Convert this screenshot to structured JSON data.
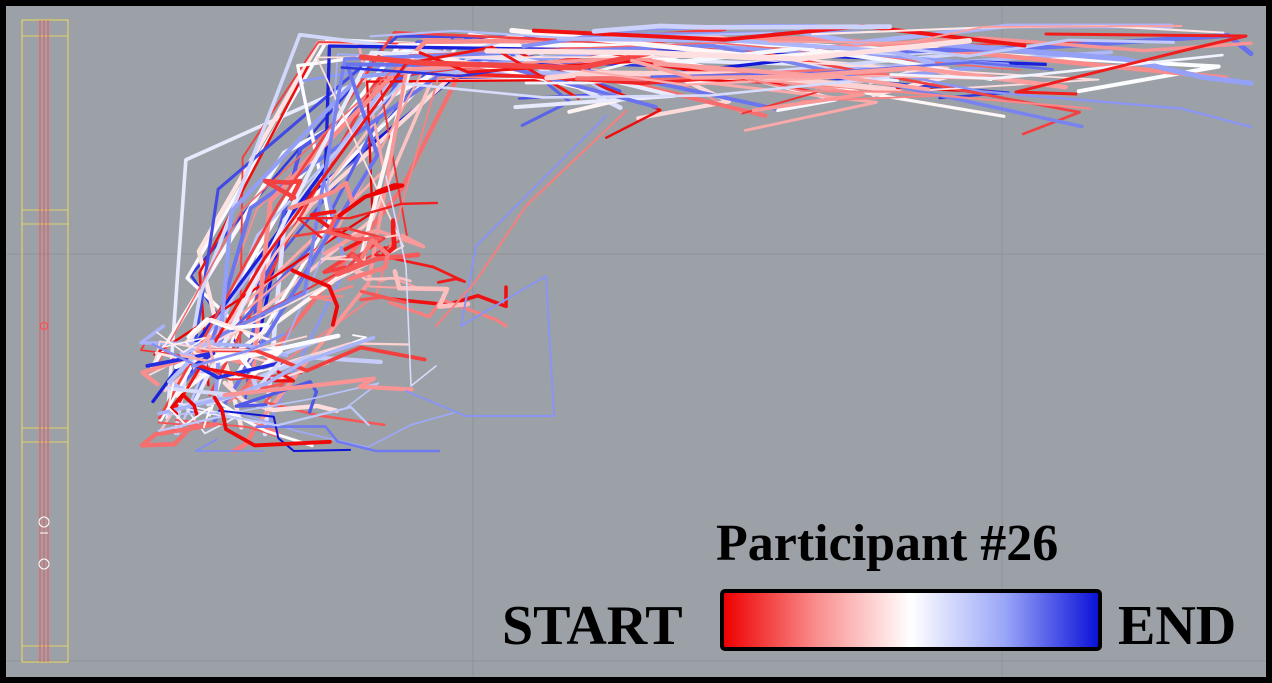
{
  "title": "Participant #26",
  "legend": {
    "start_label": "START",
    "end_label": "END",
    "gradient_colors": [
      "#ee0000",
      "#fa8f8f",
      "#ffffff",
      "#9aa6f8",
      "#0b12d8"
    ]
  },
  "colors": {
    "background": "#9ca1a7",
    "frame": "#000000",
    "grid": "#8e949a",
    "instrument_outline": "#e0d26a",
    "instrument_line": "#ff4d4d"
  },
  "icons": [
    "trajectory-paths",
    "instrument-guide",
    "color-gradient-bar"
  ]
}
